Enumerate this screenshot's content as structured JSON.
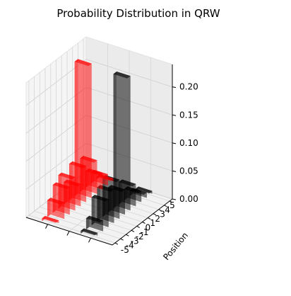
{
  "chart_data": {
    "type": "bar",
    "title": "Probability Distribution in QRW",
    "zlabel": "",
    "position_label": "Position",
    "positions": [
      -5,
      -4,
      -3,
      -2,
      -1,
      0,
      1,
      2,
      3,
      4,
      5
    ],
    "position_tick_labels": [
      "-5",
      "-4",
      "-3",
      "-2",
      "-1",
      "0",
      "1",
      "2",
      "3",
      "4",
      "5"
    ],
    "z_ticks": [
      0.0,
      0.05,
      0.1,
      0.15,
      0.2
    ],
    "z_tick_labels": [
      "0.00",
      "0.05",
      "0.10",
      "0.15",
      "0.20"
    ],
    "zlim": [
      0,
      0.24
    ],
    "grid": true,
    "series": [
      {
        "color": "#ff0000",
        "opacity": 0.65,
        "values": [
          0.005,
          0.03,
          0.05,
          0.06,
          0.04,
          0.065,
          0.24,
          0.06,
          0.03,
          0.02,
          0.005
        ]
      },
      {
        "color": "#000000",
        "opacity": 0.65,
        "values": [
          0.005,
          0.02,
          0.05,
          0.06,
          0.07,
          0.045,
          0.24,
          0.04,
          0.02,
          0.01,
          0.005
        ]
      }
    ]
  }
}
